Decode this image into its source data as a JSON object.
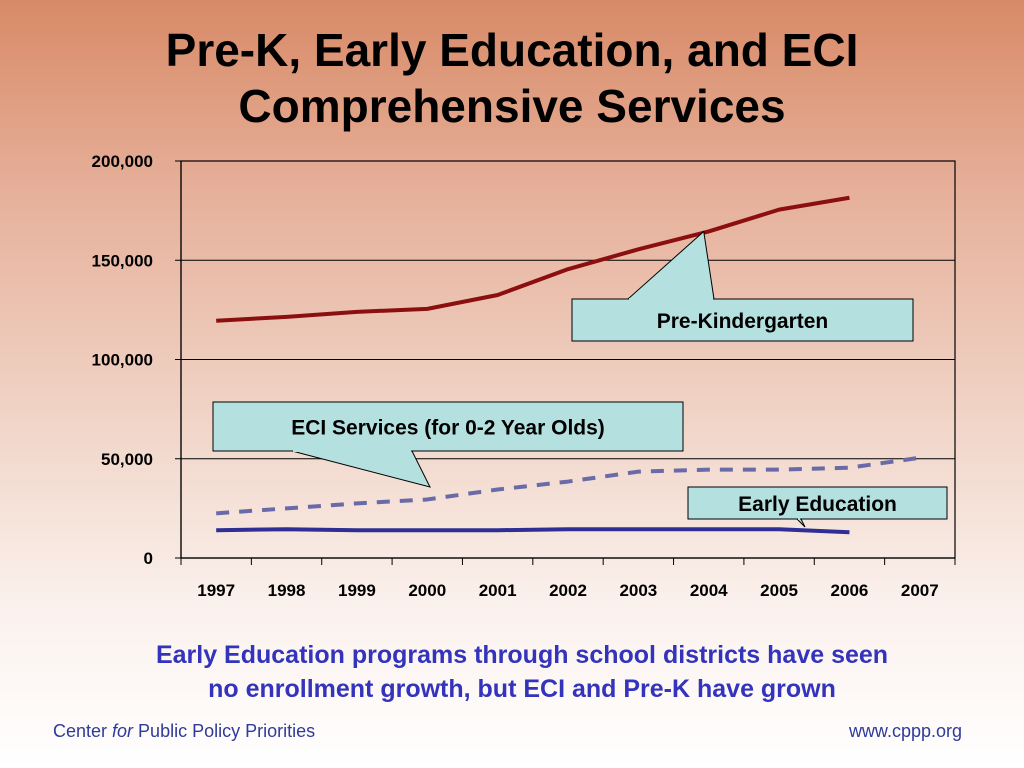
{
  "slide": {
    "title_line1": "Pre-K, Early Education, and ECI",
    "title_line2": "Comprehensive Services",
    "caption_line1": "Early Education programs through school districts have seen",
    "caption_line2": "no enrollment growth, but ECI and Pre-K have grown",
    "caption_color": "#3333bb",
    "footer_left_pre": "Center ",
    "footer_left_em": "for",
    "footer_left_post": " Public Policy Priorities",
    "footer_right": "www.cppp.org"
  },
  "chart_data": {
    "type": "line",
    "categories": [
      "1997",
      "1998",
      "1999",
      "2000",
      "2001",
      "2002",
      "2003",
      "2004",
      "2005",
      "2006",
      "2007"
    ],
    "ylim": [
      0,
      200000
    ],
    "yticks": [
      0,
      50000,
      100000,
      150000,
      200000
    ],
    "ytick_labels": [
      "0",
      "50,000",
      "100,000",
      "150,000",
      "200,000"
    ],
    "grid": true,
    "series": [
      {
        "name": "Pre-Kindergarten",
        "color": "#8b0f0f",
        "style": "solid",
        "values": [
          119500,
          121500,
          124000,
          125500,
          132500,
          145500,
          155500,
          164500,
          175500,
          181500,
          null
        ]
      },
      {
        "name": "ECI Services (for 0-2 Year Olds)",
        "color": "#6a6aa8",
        "style": "dashed",
        "values": [
          22500,
          25000,
          27500,
          29500,
          34500,
          38500,
          43500,
          44500,
          44500,
          45500,
          50500
        ]
      },
      {
        "name": "Early Education",
        "color": "#2e2e94",
        "style": "solid",
        "values": [
          14000,
          14500,
          14000,
          14000,
          14000,
          14500,
          14500,
          14500,
          14500,
          13000,
          null
        ]
      }
    ],
    "callouts": [
      {
        "label": "Pre-Kindergarten",
        "series_index": 0
      },
      {
        "label": "ECI Services (for 0-2 Year Olds)",
        "series_index": 1
      },
      {
        "label": "Early Education",
        "series_index": 2
      }
    ],
    "callout_fill": "#b5e0e0"
  }
}
